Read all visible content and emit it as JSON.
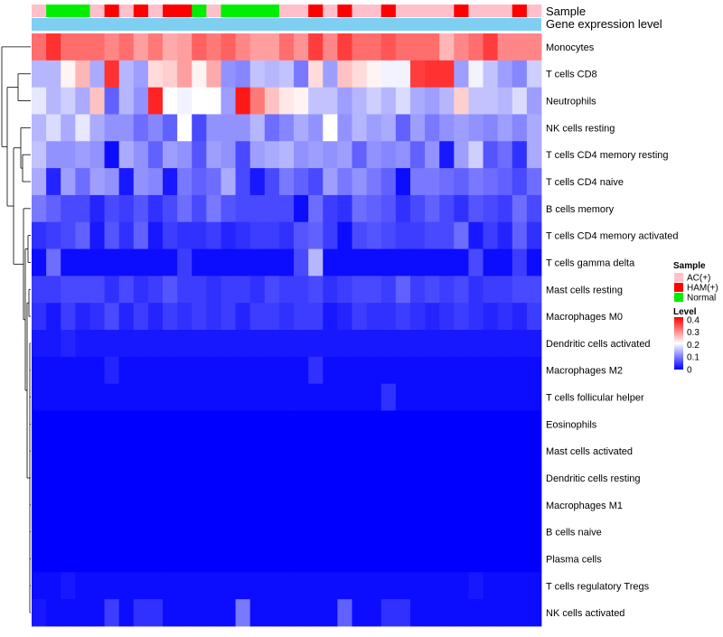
{
  "colors": {
    "ac": "#ffc0cb",
    "ham": "#ff0000",
    "normal": "#00ee00",
    "expr_bar": "#7ecff2",
    "scale_high": "#ff0000",
    "scale_mid": "#ffffff",
    "scale_low": "#0000ff",
    "dendrogram": "#000000"
  },
  "chart_data": {
    "type": "heatmap",
    "title": "",
    "annotation_rows": [
      {
        "name": "Sample",
        "label": "Sample"
      },
      {
        "name": "Gene expression level",
        "label": "Gene expression level"
      }
    ],
    "sample_groups": [
      "AC(+)",
      "HAM(+)",
      "Normal"
    ],
    "samples": [
      "AC(+)",
      "Normal",
      "Normal",
      "Normal",
      "AC(+)",
      "HAM(+)",
      "AC(+)",
      "HAM(+)",
      "AC(+)",
      "HAM(+)",
      "HAM(+)",
      "Normal",
      "AC(+)",
      "Normal",
      "Normal",
      "Normal",
      "Normal",
      "AC(+)",
      "AC(+)",
      "HAM(+)",
      "AC(+)",
      "HAM(+)",
      "AC(+)",
      "AC(+)",
      "HAM(+)",
      "AC(+)",
      "AC(+)",
      "AC(+)",
      "AC(+)",
      "HAM(+)",
      "AC(+)",
      "AC(+)",
      "AC(+)",
      "HAM(+)",
      "AC(+)"
    ],
    "rows": [
      "Monocytes",
      "T cells CD8",
      "Neutrophils",
      "NK cells resting",
      "T cells CD4 memory resting",
      "T cells CD4 naive",
      "B cells memory",
      "T cells CD4 memory activated",
      "T cells gamma delta",
      "Mast cells resting",
      "Macrophages M0",
      "Dendritic cells activated",
      "Macrophages M2",
      "T cells follicular helper",
      "Eosinophils",
      "Mast cells activated",
      "Dendritic cells resting",
      "Macrophages M1",
      "B cells naive",
      "Plasma cells",
      "T cells regulatory  Tregs",
      "NK cells activated"
    ],
    "values": [
      [
        0.33,
        0.38,
        0.33,
        0.33,
        0.33,
        0.31,
        0.33,
        0.29,
        0.32,
        0.28,
        0.29,
        0.34,
        0.32,
        0.34,
        0.31,
        0.29,
        0.29,
        0.33,
        0.3,
        0.37,
        0.31,
        0.37,
        0.33,
        0.33,
        0.35,
        0.33,
        0.33,
        0.33,
        0.27,
        0.31,
        0.33,
        0.37,
        0.31,
        0.31,
        0.31
      ],
      [
        0.15,
        0.15,
        0.22,
        0.27,
        0.14,
        0.38,
        0.15,
        0.13,
        0.24,
        0.25,
        0.29,
        0.22,
        0.28,
        0.12,
        0.11,
        0.16,
        0.15,
        0.16,
        0.1,
        0.24,
        0.13,
        0.26,
        0.24,
        0.22,
        0.2,
        0.2,
        0.37,
        0.38,
        0.38,
        0.13,
        0.2,
        0.16,
        0.13,
        0.11,
        0.17
      ],
      [
        0.19,
        0.15,
        0.17,
        0.14,
        0.26,
        0.08,
        0.15,
        0.12,
        0.39,
        0.21,
        0.2,
        0.21,
        0.21,
        0.13,
        0.4,
        0.32,
        0.26,
        0.23,
        0.22,
        0.16,
        0.16,
        0.13,
        0.15,
        0.17,
        0.15,
        0.18,
        0.14,
        0.13,
        0.15,
        0.25,
        0.16,
        0.16,
        0.15,
        0.18,
        0.13
      ],
      [
        0.15,
        0.18,
        0.14,
        0.19,
        0.14,
        0.12,
        0.12,
        0.09,
        0.11,
        0.08,
        0.21,
        0.06,
        0.12,
        0.12,
        0.12,
        0.15,
        0.09,
        0.11,
        0.14,
        0.12,
        0.21,
        0.12,
        0.15,
        0.13,
        0.14,
        0.08,
        0.13,
        0.1,
        0.12,
        0.13,
        0.12,
        0.11,
        0.13,
        0.11,
        0.14
      ],
      [
        0.16,
        0.12,
        0.12,
        0.13,
        0.12,
        0.01,
        0.14,
        0.12,
        0.08,
        0.13,
        0.12,
        0.07,
        0.13,
        0.12,
        0.06,
        0.13,
        0.14,
        0.15,
        0.12,
        0.13,
        0.12,
        0.13,
        0.08,
        0.12,
        0.11,
        0.12,
        0.08,
        0.12,
        0.02,
        0.13,
        0.17,
        0.07,
        0.09,
        0.04,
        0.14
      ],
      [
        0.14,
        0.03,
        0.13,
        0.09,
        0.13,
        0.12,
        0.02,
        0.12,
        0.11,
        0.02,
        0.1,
        0.08,
        0.09,
        0.14,
        0.06,
        0.02,
        0.06,
        0.1,
        0.08,
        0.06,
        0.13,
        0.1,
        0.12,
        0.1,
        0.08,
        0.01,
        0.1,
        0.1,
        0.09,
        0.08,
        0.1,
        0.09,
        0.08,
        0.06,
        0.09
      ],
      [
        0.1,
        0.08,
        0.06,
        0.06,
        0.03,
        0.06,
        0.05,
        0.07,
        0.04,
        0.06,
        0.09,
        0.06,
        0.1,
        0.07,
        0.06,
        0.06,
        0.06,
        0.06,
        0.01,
        0.09,
        0.05,
        0.04,
        0.09,
        0.08,
        0.07,
        0.04,
        0.06,
        0.08,
        0.06,
        0.04,
        0.07,
        0.06,
        0.05,
        0.09,
        0.06
      ],
      [
        0.04,
        0.05,
        0.06,
        0.08,
        0.02,
        0.07,
        0.04,
        0.08,
        0.02,
        0.05,
        0.04,
        0.04,
        0.05,
        0.03,
        0.04,
        0.05,
        0.05,
        0.04,
        0.07,
        0.08,
        0.05,
        0.01,
        0.06,
        0.07,
        0.06,
        0.05,
        0.05,
        0.06,
        0.06,
        0.09,
        0.02,
        0.05,
        0.03,
        0.08,
        0.04
      ],
      [
        0.01,
        0.09,
        0.01,
        0.01,
        0.01,
        0.01,
        0.01,
        0.01,
        0.01,
        0.01,
        0.05,
        0.01,
        0.01,
        0.01,
        0.01,
        0.01,
        0.01,
        0.01,
        0.06,
        0.15,
        0.01,
        0.01,
        0.01,
        0.01,
        0.01,
        0.01,
        0.01,
        0.01,
        0.01,
        0.01,
        0.06,
        0.01,
        0.01,
        0.05,
        0.01
      ],
      [
        0.05,
        0.05,
        0.06,
        0.06,
        0.06,
        0.04,
        0.06,
        0.04,
        0.05,
        0.07,
        0.05,
        0.05,
        0.04,
        0.05,
        0.05,
        0.04,
        0.06,
        0.05,
        0.05,
        0.06,
        0.04,
        0.05,
        0.06,
        0.06,
        0.05,
        0.08,
        0.05,
        0.06,
        0.05,
        0.06,
        0.04,
        0.05,
        0.05,
        0.06,
        0.06
      ],
      [
        0.04,
        0.02,
        0.05,
        0.03,
        0.04,
        0.06,
        0.03,
        0.05,
        0.03,
        0.05,
        0.04,
        0.05,
        0.04,
        0.05,
        0.03,
        0.05,
        0.05,
        0.04,
        0.05,
        0.05,
        0.02,
        0.03,
        0.05,
        0.04,
        0.04,
        0.05,
        0.04,
        0.03,
        0.04,
        0.05,
        0.04,
        0.03,
        0.04,
        0.03,
        0.05
      ],
      [
        0.02,
        0.02,
        0.03,
        0.02,
        0.02,
        0.02,
        0.02,
        0.02,
        0.02,
        0.02,
        0.02,
        0.02,
        0.02,
        0.02,
        0.02,
        0.02,
        0.02,
        0.02,
        0.02,
        0.02,
        0.02,
        0.02,
        0.02,
        0.02,
        0.02,
        0.02,
        0.02,
        0.02,
        0.02,
        0.02,
        0.02,
        0.02,
        0.02,
        0.02,
        0.02
      ],
      [
        0.01,
        0.01,
        0.01,
        0.01,
        0.01,
        0.03,
        0.01,
        0.01,
        0.01,
        0.01,
        0.01,
        0.01,
        0.01,
        0.01,
        0.01,
        0.01,
        0.01,
        0.01,
        0.01,
        0.04,
        0.01,
        0.01,
        0.01,
        0.01,
        0.01,
        0.01,
        0.01,
        0.01,
        0.01,
        0.01,
        0.01,
        0.01,
        0.01,
        0.01,
        0.01
      ],
      [
        0.01,
        0.01,
        0.01,
        0.01,
        0.01,
        0.01,
        0.01,
        0.01,
        0.01,
        0.01,
        0.01,
        0.01,
        0.01,
        0.01,
        0.01,
        0.01,
        0.01,
        0.01,
        0.01,
        0.01,
        0.01,
        0.01,
        0.01,
        0.01,
        0.04,
        0.01,
        0.01,
        0.01,
        0.01,
        0.01,
        0.01,
        0.01,
        0.01,
        0.01,
        0.01
      ],
      [
        0.0,
        0.0,
        0.0,
        0.0,
        0.0,
        0.0,
        0.0,
        0.0,
        0.0,
        0.0,
        0.0,
        0.0,
        0.0,
        0.0,
        0.0,
        0.0,
        0.0,
        0.0,
        0.0,
        0.0,
        0.0,
        0.0,
        0.0,
        0.0,
        0.0,
        0.0,
        0.0,
        0.0,
        0.0,
        0.0,
        0.0,
        0.0,
        0.0,
        0.0,
        0.0
      ],
      [
        0.0,
        0.0,
        0.0,
        0.0,
        0.0,
        0.0,
        0.0,
        0.0,
        0.0,
        0.0,
        0.0,
        0.0,
        0.0,
        0.0,
        0.0,
        0.0,
        0.0,
        0.0,
        0.0,
        0.0,
        0.0,
        0.0,
        0.0,
        0.0,
        0.0,
        0.0,
        0.0,
        0.0,
        0.0,
        0.0,
        0.0,
        0.0,
        0.0,
        0.0,
        0.0
      ],
      [
        0.0,
        0.0,
        0.0,
        0.0,
        0.0,
        0.0,
        0.0,
        0.0,
        0.0,
        0.0,
        0.0,
        0.0,
        0.0,
        0.0,
        0.0,
        0.0,
        0.0,
        0.0,
        0.0,
        0.0,
        0.0,
        0.0,
        0.0,
        0.0,
        0.0,
        0.0,
        0.0,
        0.0,
        0.0,
        0.0,
        0.0,
        0.0,
        0.0,
        0.0,
        0.0
      ],
      [
        0.0,
        0.0,
        0.0,
        0.0,
        0.0,
        0.0,
        0.0,
        0.0,
        0.0,
        0.0,
        0.0,
        0.0,
        0.0,
        0.0,
        0.0,
        0.0,
        0.0,
        0.0,
        0.0,
        0.0,
        0.0,
        0.0,
        0.0,
        0.0,
        0.0,
        0.0,
        0.0,
        0.0,
        0.0,
        0.0,
        0.0,
        0.0,
        0.0,
        0.0,
        0.0
      ],
      [
        0.0,
        0.0,
        0.0,
        0.0,
        0.0,
        0.0,
        0.0,
        0.0,
        0.0,
        0.0,
        0.0,
        0.0,
        0.0,
        0.0,
        0.0,
        0.0,
        0.0,
        0.0,
        0.0,
        0.0,
        0.0,
        0.0,
        0.0,
        0.0,
        0.0,
        0.0,
        0.0,
        0.0,
        0.0,
        0.0,
        0.0,
        0.0,
        0.0,
        0.0,
        0.0
      ],
      [
        0.0,
        0.0,
        0.0,
        0.0,
        0.0,
        0.0,
        0.0,
        0.0,
        0.0,
        0.0,
        0.0,
        0.0,
        0.0,
        0.0,
        0.0,
        0.0,
        0.0,
        0.0,
        0.0,
        0.0,
        0.0,
        0.0,
        0.0,
        0.0,
        0.0,
        0.0,
        0.0,
        0.0,
        0.0,
        0.0,
        0.0,
        0.0,
        0.0,
        0.0,
        0.0
      ],
      [
        0.01,
        0.01,
        0.02,
        0.01,
        0.01,
        0.01,
        0.01,
        0.01,
        0.01,
        0.01,
        0.01,
        0.01,
        0.01,
        0.01,
        0.01,
        0.01,
        0.01,
        0.01,
        0.01,
        0.01,
        0.01,
        0.01,
        0.01,
        0.01,
        0.01,
        0.01,
        0.01,
        0.01,
        0.01,
        0.01,
        0.02,
        0.01,
        0.01,
        0.01,
        0.01
      ],
      [
        0.02,
        0.01,
        0.01,
        0.01,
        0.01,
        0.05,
        0.01,
        0.04,
        0.04,
        0.01,
        0.01,
        0.01,
        0.01,
        0.01,
        0.1,
        0.01,
        0.01,
        0.01,
        0.01,
        0.01,
        0.01,
        0.08,
        0.01,
        0.01,
        0.04,
        0.04,
        0.01,
        0.01,
        0.01,
        0.01,
        0.01,
        0.01,
        0.01,
        0.01,
        0.01
      ]
    ],
    "legend": {
      "position": "right",
      "sample_title": "Sample",
      "sample_entries": [
        "AC(+)",
        "HAM(+)",
        "Normal"
      ],
      "level_title": "Level",
      "level_ticks": [
        "0.4",
        "0.3",
        "0.2",
        "0.1",
        "0"
      ],
      "level_tick_values": [
        0.4,
        0.3,
        0.2,
        0.1,
        0.0
      ],
      "level_range": [
        0,
        0.42
      ]
    },
    "row_clustering": true,
    "column_clustering": false
  }
}
